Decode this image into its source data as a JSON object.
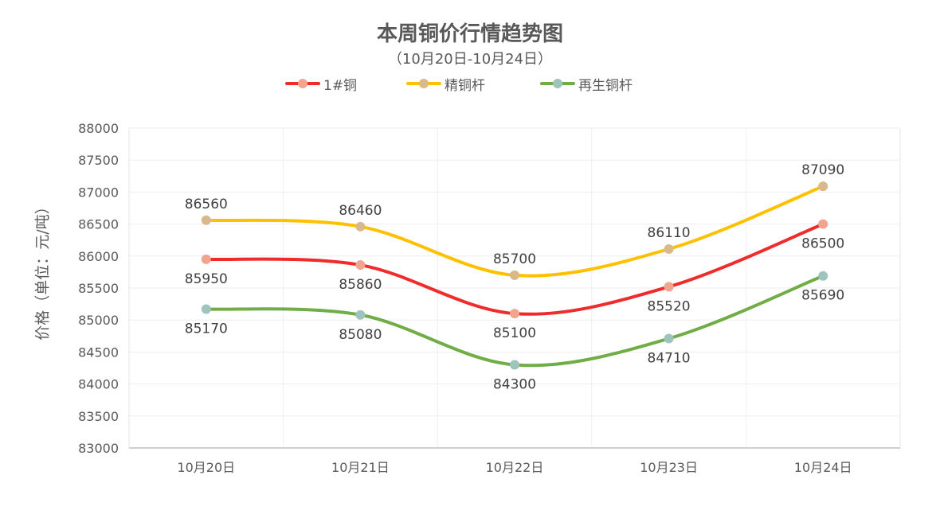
{
  "chart_data": {
    "type": "line",
    "title": "本周铜价行情趋势图",
    "subtitle": "（10月20日-10月24日）",
    "xlabel": "",
    "ylabel": "价格（单位：元/吨）",
    "categories": [
      "10月20日",
      "10月21日",
      "10月22日",
      "10月23日",
      "10月24日"
    ],
    "ylim": [
      83000,
      88000
    ],
    "ytick_step": 500,
    "grid": true,
    "legend_position": "top",
    "series": [
      {
        "name": "1#铜",
        "values": [
          85950,
          85860,
          85100,
          85520,
          86500
        ],
        "line_color": "#ee2c2c",
        "marker_color": "#f3a48f",
        "label_position": "below"
      },
      {
        "name": "精铜杆",
        "values": [
          86560,
          86460,
          85700,
          86110,
          87090
        ],
        "line_color": "#ffc000",
        "marker_color": "#d9b88a",
        "label_position": "above"
      },
      {
        "name": "再生铜杆",
        "values": [
          85170,
          85080,
          84300,
          84710,
          85690
        ],
        "line_color": "#70ad47",
        "marker_color": "#9fc4bd",
        "label_position": "below"
      }
    ]
  }
}
